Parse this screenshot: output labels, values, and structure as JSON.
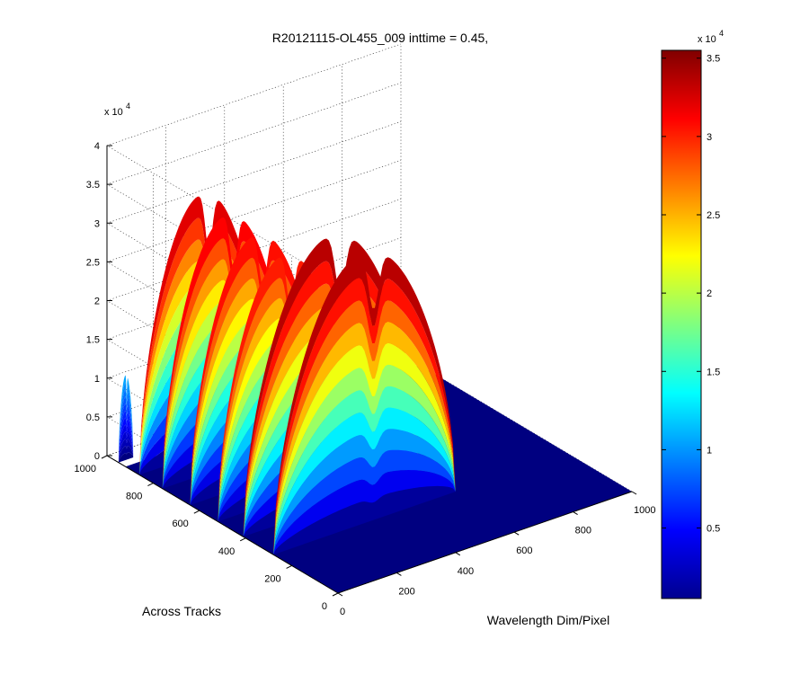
{
  "chart_data": {
    "type": "surface",
    "title": "R20121115-OL455_009 inttime = 0.45,",
    "xlabel": "Wavelength Dim/Pixel",
    "ylabel": "Across Tracks",
    "zlabel": "",
    "xlim": [
      0,
      1000
    ],
    "ylim": [
      0,
      1000
    ],
    "zlim": [
      0,
      40000
    ],
    "x_ticks": [
      "0",
      "200",
      "400",
      "600",
      "800",
      "1000"
    ],
    "y_ticks": [
      "0",
      "200",
      "400",
      "600",
      "800",
      "1000"
    ],
    "z_ticks": [
      "0",
      "0.5",
      "1",
      "1.5",
      "2",
      "2.5",
      "3",
      "3.5",
      "4"
    ],
    "z_exponent": "x 10",
    "z_exponent_power": "4",
    "colorbar": {
      "colormap": "jet",
      "range": [
        500,
        35500
      ],
      "ticks": [
        "0.5",
        "1",
        "1.5",
        "2",
        "2.5",
        "3",
        "3.5"
      ],
      "exponent": "x 10",
      "exponent_power": "4"
    },
    "grid": true,
    "surface_bands": [
      {
        "y": 950,
        "x_start": 0,
        "x_end": 50,
        "peak": 11000
      },
      {
        "y": 860,
        "x_start": 0,
        "x_end": 430,
        "peak": 33500
      },
      {
        "y": 760,
        "x_start": 0,
        "x_end": 440,
        "peak": 32500
      },
      {
        "y": 640,
        "x_start": 0,
        "x_end": 450,
        "peak": 32000
      },
      {
        "y": 520,
        "x_start": 0,
        "x_end": 450,
        "peak": 31500
      },
      {
        "y": 410,
        "x_start": 0,
        "x_end": 600,
        "peak": 35000
      },
      {
        "y": 280,
        "x_start": 0,
        "x_end": 620,
        "peak": 35000
      }
    ]
  }
}
